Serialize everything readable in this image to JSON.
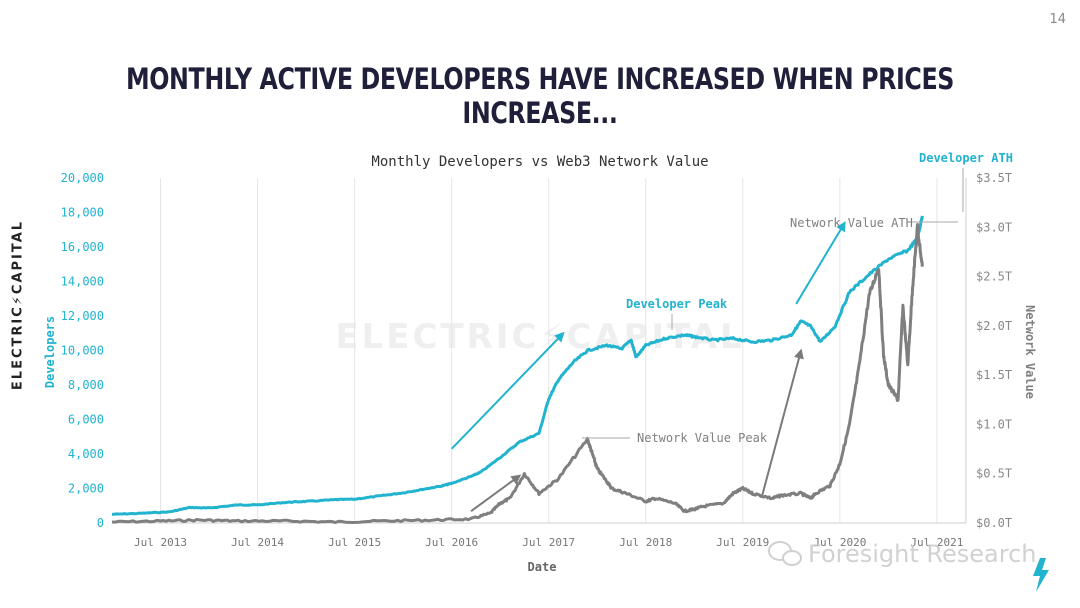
{
  "page": {
    "number": "14",
    "headline": "Monthly active developers have increased when prices increase...",
    "brand_vertical": "ELECTRIC⚡CAPITAL",
    "watermark_text": "ELECTRIC⚡CAPITAL",
    "overlay_text": "Foresight Research"
  },
  "colors": {
    "developers": "#22b3cf",
    "network_value": "#7f7f7f",
    "arrow_dev": "#22b3cf",
    "arrow_net": "#7a7a7a",
    "headline": "#1f1f3a",
    "bolt": "#22b3cf"
  },
  "chart_data": {
    "type": "line",
    "title": "Monthly Developers vs Web3 Network Value",
    "xlabel": "Date",
    "ylabel_left": "Developers",
    "ylabel_right": "Network Value",
    "x_ticks": [
      "Jul 2013",
      "Jul 2014",
      "Jul 2015",
      "Jul 2016",
      "Jul 2017",
      "Jul 2018",
      "Jul 2019",
      "Jul 2020",
      "Jul 2021"
    ],
    "x_range": [
      2013.0,
      2021.8
    ],
    "y_left_range": [
      0,
      20000
    ],
    "y_left_ticks": [
      "0",
      "2,000",
      "4,000",
      "6,000",
      "8,000",
      "10,000",
      "12,000",
      "14,000",
      "16,000",
      "18,000",
      "20,000"
    ],
    "y_left_tick_values": [
      0,
      2000,
      4000,
      6000,
      8000,
      10000,
      12000,
      14000,
      16000,
      18000,
      20000
    ],
    "y_right_range": [
      0,
      3.5
    ],
    "y_right_ticks": [
      "$0.0T",
      "$0.5T",
      "$1.0T",
      "$1.5T",
      "$2.0T",
      "$2.5T",
      "$3.0T",
      "$3.5T"
    ],
    "y_right_tick_values": [
      0,
      0.5,
      1.0,
      1.5,
      2.0,
      2.5,
      3.0,
      3.5
    ],
    "series": [
      {
        "name": "Developers",
        "axis": "left",
        "x": [
          2013.0,
          2013.3,
          2013.6,
          2013.8,
          2014.0,
          2014.3,
          2014.5,
          2014.8,
          2015.0,
          2015.3,
          2015.5,
          2015.8,
          2016.0,
          2016.2,
          2016.4,
          2016.5,
          2016.7,
          2016.8,
          2017.0,
          2017.2,
          2017.4,
          2017.5,
          2017.6,
          2017.75,
          2017.9,
          2018.1,
          2018.25,
          2018.35,
          2018.4,
          2018.5,
          2018.7,
          2018.9,
          2019.0,
          2019.2,
          2019.4,
          2019.6,
          2019.8,
          2020.0,
          2020.1,
          2020.2,
          2020.3,
          2020.45,
          2020.6,
          2020.8,
          2021.0,
          2021.2,
          2021.3,
          2021.35
        ],
        "values": [
          500,
          560,
          650,
          900,
          870,
          1050,
          1050,
          1200,
          1250,
          1350,
          1380,
          1600,
          1750,
          1950,
          2150,
          2300,
          2700,
          2950,
          3800,
          4700,
          5200,
          7200,
          8300,
          9300,
          10000,
          10300,
          10100,
          10600,
          9600,
          10300,
          10700,
          10900,
          10800,
          10600,
          10700,
          10500,
          10600,
          10900,
          11700,
          11400,
          10500,
          11400,
          13400,
          14400,
          15300,
          15800,
          16500,
          17800
        ]
      },
      {
        "name": "Network Value",
        "axis": "right",
        "x": [
          2013.0,
          2013.5,
          2013.9,
          2014.3,
          2014.8,
          2015.3,
          2015.8,
          2016.3,
          2016.7,
          2016.9,
          2017.0,
          2017.1,
          2017.25,
          2017.4,
          2017.6,
          2017.9,
          2017.95,
          2018.0,
          2018.1,
          2018.15,
          2018.3,
          2018.5,
          2018.6,
          2018.8,
          2018.9,
          2019.0,
          2019.1,
          2019.3,
          2019.4,
          2019.5,
          2019.6,
          2019.8,
          2019.9,
          2020.1,
          2020.2,
          2020.25,
          2020.4,
          2020.5,
          2020.6,
          2020.7,
          2020.8,
          2020.9,
          2020.95,
          2021.0,
          2021.1,
          2021.15,
          2021.2,
          2021.25,
          2021.3,
          2021.35
        ],
        "values": [
          0.01,
          0.02,
          0.03,
          0.02,
          0.02,
          0.01,
          0.02,
          0.03,
          0.04,
          0.1,
          0.2,
          0.25,
          0.5,
          0.3,
          0.45,
          0.85,
          0.7,
          0.55,
          0.42,
          0.35,
          0.3,
          0.22,
          0.25,
          0.2,
          0.12,
          0.14,
          0.17,
          0.2,
          0.3,
          0.35,
          0.3,
          0.25,
          0.28,
          0.3,
          0.25,
          0.3,
          0.38,
          0.6,
          1.0,
          1.6,
          2.3,
          2.6,
          1.7,
          1.4,
          1.25,
          2.2,
          1.6,
          2.4,
          3.0,
          2.6
        ]
      }
    ],
    "annotations": [
      {
        "id": "dev-peak",
        "text": "Developer Peak",
        "color": "developers"
      },
      {
        "id": "dev-ath",
        "text": "Developer ATH",
        "color": "developers"
      },
      {
        "id": "net-peak",
        "text": "Network Value Peak",
        "color": "network_value"
      },
      {
        "id": "net-ath",
        "text": "Network Value ATH",
        "color": "network_value"
      }
    ],
    "trend_arrows": [
      {
        "axis": "left",
        "from": [
          2016.5,
          4300
        ],
        "to": [
          2017.65,
          11000
        ],
        "color": "arrow_dev"
      },
      {
        "axis": "left",
        "from": [
          2020.05,
          12700
        ],
        "to": [
          2020.55,
          17400
        ],
        "color": "arrow_dev"
      },
      {
        "axis": "right",
        "from": [
          2016.7,
          0.12
        ],
        "to": [
          2017.2,
          0.48
        ],
        "color": "arrow_net"
      },
      {
        "axis": "right",
        "from": [
          2019.7,
          0.28
        ],
        "to": [
          2020.1,
          1.75
        ],
        "color": "arrow_net"
      }
    ]
  }
}
